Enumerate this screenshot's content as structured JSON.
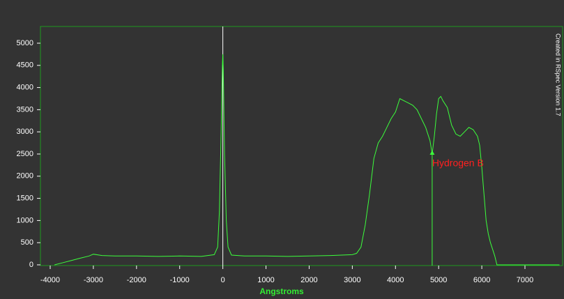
{
  "chart_data": {
    "type": "line",
    "x_label": "Angstroms",
    "watermark": "Created in RSpec Version 1.7",
    "x": [
      -3900,
      -3700,
      -3500,
      -3300,
      -3100,
      -3000,
      -2800,
      -2500,
      -2000,
      -1500,
      -1000,
      -500,
      -200,
      -120,
      -80,
      -40,
      -10,
      0,
      10,
      40,
      80,
      120,
      200,
      500,
      1000,
      1500,
      2000,
      2500,
      3000,
      3100,
      3200,
      3300,
      3400,
      3500,
      3600,
      3700,
      3800,
      3900,
      4000,
      4100,
      4200,
      4300,
      4400,
      4500,
      4600,
      4700,
      4800,
      4850,
      4900,
      4950,
      5000,
      5050,
      5100,
      5200,
      5300,
      5400,
      5500,
      5600,
      5700,
      5800,
      5900,
      5950,
      6000,
      6050,
      6100,
      6150,
      6200,
      6250,
      6300,
      6350,
      7000,
      7800
    ],
    "values": [
      0,
      50,
      100,
      150,
      200,
      240,
      210,
      200,
      200,
      190,
      200,
      190,
      230,
      400,
      1200,
      3000,
      4500,
      4750,
      4400,
      2500,
      1000,
      400,
      220,
      200,
      200,
      190,
      200,
      210,
      230,
      260,
      400,
      900,
      1600,
      2400,
      2750,
      2900,
      3100,
      3300,
      3450,
      3750,
      3700,
      3650,
      3600,
      3500,
      3300,
      3100,
      2800,
      2500,
      2900,
      3400,
      3750,
      3800,
      3700,
      3550,
      3150,
      2950,
      2900,
      3000,
      3100,
      3050,
      2900,
      2700,
      2200,
      1600,
      1000,
      700,
      500,
      350,
      200,
      0,
      0,
      0
    ],
    "color": "#3cff3c",
    "xlim": [
      -4226,
      7872
    ],
    "ylim": [
      -16,
      5377
    ],
    "xticks": [
      -4000,
      -3000,
      -2000,
      -1000,
      0,
      1000,
      2000,
      3000,
      4000,
      5000,
      6000,
      7000
    ],
    "yticks": [
      0,
      500,
      1000,
      1500,
      2000,
      2500,
      3000,
      3500,
      4000,
      4500,
      5000
    ],
    "reference_line_x": 0,
    "annotations": [
      {
        "text": "Hydrogen B",
        "x": 4850,
        "y": 2500,
        "color": "#ff2020"
      }
    ]
  }
}
